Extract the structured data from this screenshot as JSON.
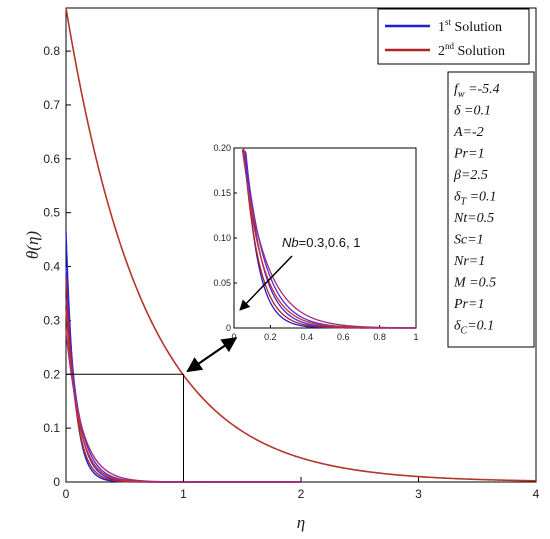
{
  "chart_data": {
    "type": "line",
    "title": "",
    "xlabel": "η",
    "ylabel": "θ(η)",
    "xlim": [
      0,
      4
    ],
    "ylim": [
      0,
      0.88
    ],
    "x_ticks": [
      0,
      1,
      2,
      3,
      4
    ],
    "y_ticks": [
      0,
      0.1,
      0.2,
      0.3,
      0.4,
      0.5,
      0.6,
      0.7,
      0.8
    ],
    "grid": false,
    "legend": {
      "placement": "top-right",
      "entries": [
        {
          "base": "1",
          "sup": "st",
          "text": " Solution",
          "color": "#1f1fd6"
        },
        {
          "base": "2",
          "sup": "nd",
          "text": " Solution",
          "color": "#b22222"
        }
      ]
    },
    "series": [
      {
        "group": "1st Solution",
        "color": "#1f1fd6",
        "theta0": 0.465,
        "decay": 14,
        "x_end": 2
      },
      {
        "group": "1st Solution",
        "color": "#3a2ad8",
        "theta0": 0.4,
        "decay": 11,
        "x_end": 2
      },
      {
        "group": "1st Solution",
        "color": "#5a2cd0",
        "theta0": 0.34,
        "decay": 9,
        "x_end": 2
      },
      {
        "group": "2nd Solution",
        "color": "#b22222",
        "theta0": 0.38,
        "decay": 12,
        "x_end": 2
      },
      {
        "group": "2nd Solution",
        "color": "#c03030",
        "theta0": 0.32,
        "decay": 9.5,
        "x_end": 2
      },
      {
        "group": "2nd Solution",
        "color": "#a0307a",
        "theta0": 0.28,
        "decay": 7.5,
        "x_end": 2
      },
      {
        "group": "2nd Solution",
        "color": "#b5352a",
        "theta0": 0.88,
        "decay": 1.49,
        "x_end": 4
      }
    ],
    "guide": {
      "x": 1,
      "y": 0.2
    },
    "inset": {
      "xlim": [
        0,
        1
      ],
      "ylim": [
        0,
        0.2
      ],
      "x_ticks": [
        0,
        0.2,
        0.4,
        0.6,
        0.8,
        1
      ],
      "y_ticks": [
        0,
        0.05,
        0.1,
        0.15,
        0.2
      ],
      "y_tick_labels": [
        "0",
        "0.05",
        "0.10",
        "0.15",
        "0.20"
      ],
      "x_tick_labels": [
        "0",
        "0.2",
        "0.4",
        "0.6",
        "0.8",
        "1"
      ]
    },
    "annotation": {
      "var": "Nb",
      "values": "=0.3,0.6, 1"
    },
    "parameters": [
      {
        "sym": "f",
        "sub": "w",
        "val": " =-5.4"
      },
      {
        "sym": "δ",
        "sub": "",
        "val": " =0.1"
      },
      {
        "sym": "A",
        "sub": "",
        "val": "=-2"
      },
      {
        "sym": "Pr",
        "sub": "",
        "val": "=1"
      },
      {
        "sym": "β",
        "sub": "",
        "val": "=2.5"
      },
      {
        "sym": "δ",
        "sub": "T",
        "val": " =0.1"
      },
      {
        "sym": "Nt",
        "sub": "",
        "val": "=0.5"
      },
      {
        "sym": "Sc",
        "sub": "",
        "val": "=1"
      },
      {
        "sym": "Nr",
        "sub": "",
        "val": "=1"
      },
      {
        "sym": "M",
        "sub": "",
        "val": " =0.5"
      },
      {
        "sym": "Pr",
        "sub": "",
        "val": "=1"
      },
      {
        "sym": "δ",
        "sub": "C",
        "val": "=0.1"
      }
    ]
  }
}
